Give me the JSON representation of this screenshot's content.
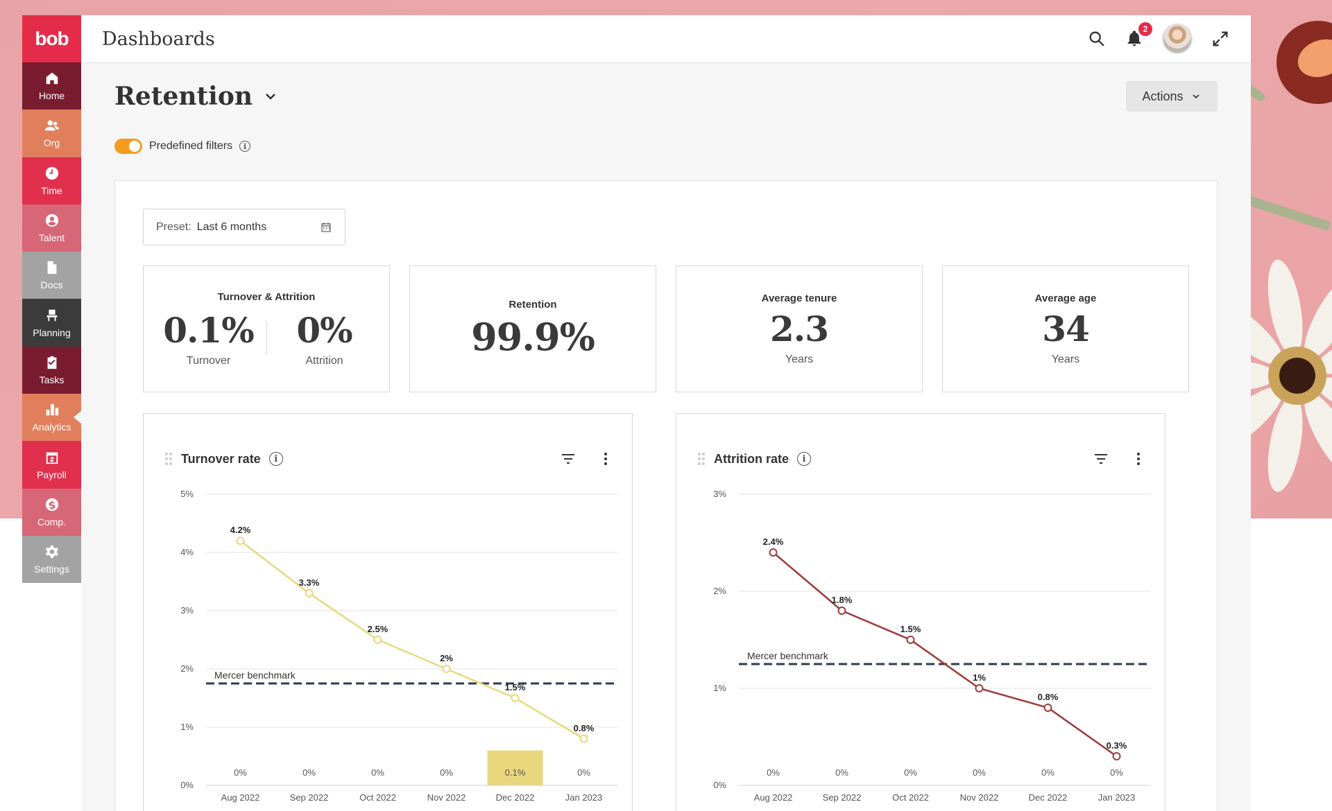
{
  "app": {
    "logo": "bob",
    "header_title": "Dashboards",
    "notification_count": "2"
  },
  "sidebar": {
    "items": [
      {
        "label": "Home",
        "color": "#7a1c30"
      },
      {
        "label": "Org",
        "color": "#e17f5d"
      },
      {
        "label": "Time",
        "color": "#e0304d"
      },
      {
        "label": "Talent",
        "color": "#d76676"
      },
      {
        "label": "Docs",
        "color": "#a3a3a3"
      },
      {
        "label": "Planning",
        "color": "#3b3b3b"
      },
      {
        "label": "Tasks",
        "color": "#7a1c30"
      },
      {
        "label": "Analytics",
        "color": "#e17f5d"
      },
      {
        "label": "Payroll",
        "color": "#e0304d"
      },
      {
        "label": "Comp.",
        "color": "#d76676"
      },
      {
        "label": "Settings",
        "color": "#a3a3a3"
      }
    ]
  },
  "page": {
    "title": "Retention",
    "actions_label": "Actions",
    "filters_label": "Predefined filters"
  },
  "preset": {
    "label": "Preset:",
    "value": "Last 6 months"
  },
  "kpis": {
    "turnover_attrition": {
      "title": "Turnover & Attrition",
      "turnover_value": "0.1%",
      "turnover_label": "Turnover",
      "attrition_value": "0%",
      "attrition_label": "Attrition"
    },
    "retention": {
      "title": "Retention",
      "value": "99.9%"
    },
    "tenure": {
      "title": "Average tenure",
      "value": "2.3",
      "unit": "Years"
    },
    "age": {
      "title": "Average age",
      "value": "34",
      "unit": "Years"
    }
  },
  "chart_data": [
    {
      "type": "line",
      "title": "Turnover rate",
      "categories": [
        "Aug 2022",
        "Sep 2022",
        "Oct 2022",
        "Nov 2022",
        "Dec 2022",
        "Jan 2023"
      ],
      "series": [
        {
          "values": [
            4.2,
            3.3,
            2.5,
            2.0,
            1.5,
            0.8
          ],
          "labels": [
            "4.2%",
            "3.3%",
            "2.5%",
            "2%",
            "1.5%",
            "0.8%"
          ],
          "color": "#e9d77d"
        }
      ],
      "bars": {
        "values": [
          0,
          0,
          0,
          0,
          0.1,
          0
        ],
        "labels": [
          "0%",
          "0%",
          "0%",
          "0%",
          "0.1%",
          "0%"
        ],
        "color": "#e9d77d"
      },
      "benchmark": {
        "label": "Mercer benchmark",
        "value": 1.75,
        "color": "#2b3a55"
      },
      "ylim": [
        0,
        5
      ],
      "yticks": [
        "0%",
        "1%",
        "2%",
        "3%",
        "4%",
        "5%"
      ],
      "ytick_values": [
        0,
        1,
        2,
        3,
        4,
        5
      ]
    },
    {
      "type": "line",
      "title": "Attrition rate",
      "categories": [
        "Aug 2022",
        "Sep 2022",
        "Oct 2022",
        "Nov 2022",
        "Dec 2022",
        "Jan 2023"
      ],
      "series": [
        {
          "values": [
            2.4,
            1.8,
            1.5,
            1.0,
            0.8,
            0.3
          ],
          "labels": [
            "2.4%",
            "1.8%",
            "1.5%",
            "1%",
            "0.8%",
            "0.3%"
          ],
          "color": "#9e3a3a"
        }
      ],
      "bars": {
        "values": [
          0,
          0,
          0,
          0,
          0,
          0
        ],
        "labels": [
          "0%",
          "0%",
          "0%",
          "0%",
          "0%",
          "0%"
        ],
        "color": "#9e3a3a"
      },
      "benchmark": {
        "label": "Mercer benchmark",
        "value": 1.25,
        "color": "#2b3a55"
      },
      "ylim": [
        0,
        3
      ],
      "yticks": [
        "0%",
        "1%",
        "2%",
        "3%"
      ],
      "ytick_values": [
        0,
        1,
        2,
        3
      ]
    }
  ]
}
